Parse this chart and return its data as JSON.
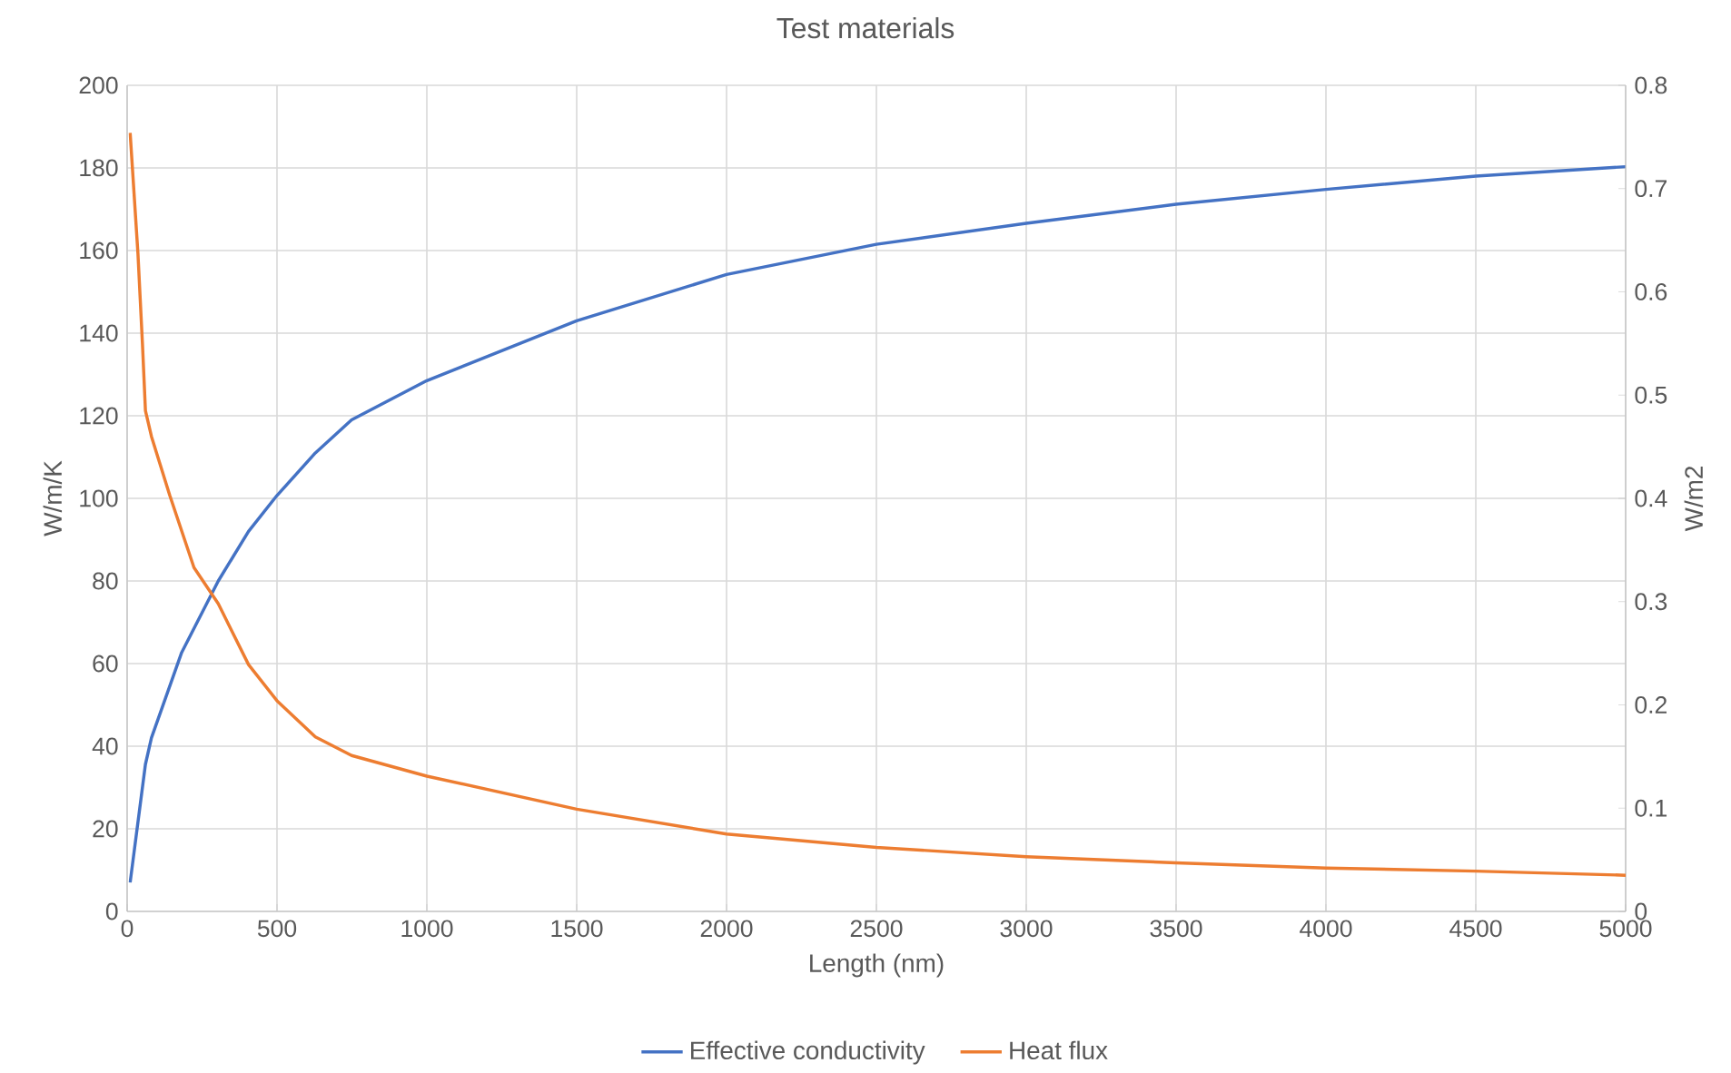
{
  "chart_data": {
    "type": "line",
    "title": "Test materials",
    "xlabel": "Length (nm)",
    "ylabel": "W/m/K",
    "y2label": "W/m2",
    "xlim": [
      0,
      5000
    ],
    "xticks": [
      0,
      500,
      1000,
      1500,
      2000,
      2500,
      3000,
      3500,
      4000,
      4500,
      5000
    ],
    "ylim": [
      0,
      200
    ],
    "yticks": [
      0,
      20,
      40,
      60,
      80,
      100,
      120,
      140,
      160,
      180,
      200
    ],
    "y2lim": [
      0,
      0.8
    ],
    "y2ticks": [
      0,
      0.1,
      0.2,
      0.3,
      0.4,
      0.5,
      0.6,
      0.7,
      0.8
    ],
    "grid": true,
    "legend": "bottom",
    "series": [
      {
        "name": "Effective conductivity",
        "color": "#4472c4",
        "x": [
          10,
          61,
          81,
          182,
          304,
          405,
          500,
          628,
          749,
          1000,
          1500,
          2000,
          2500,
          3000,
          3500,
          4000,
          4500,
          5000
        ],
        "values": [
          7,
          35.6,
          42,
          62.7,
          80,
          92,
          100.7,
          111,
          119,
          128.5,
          143,
          154.2,
          161.5,
          166.6,
          171.2,
          174.8,
          178,
          180.3
        ]
      },
      {
        "name": "Heat flux",
        "color": "#ed7d31",
        "axis": "y2",
        "x": [
          10,
          36,
          51,
          61,
          81,
          142,
          223,
          304,
          405,
          500,
          628,
          749,
          1000,
          1500,
          2000,
          2500,
          3000,
          3500,
          4000,
          4500,
          5000
        ],
        "values": [
          0.754,
          0.637,
          0.55,
          0.485,
          0.46,
          0.403,
          0.333,
          0.298,
          0.239,
          0.204,
          0.169,
          0.151,
          0.131,
          0.099,
          0.075,
          0.062,
          0.053,
          0.047,
          0.042,
          0.039,
          0.035
        ]
      }
    ]
  }
}
